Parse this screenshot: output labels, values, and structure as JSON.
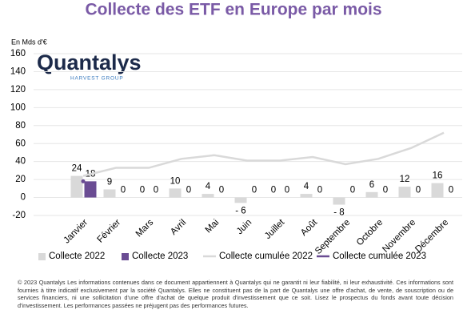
{
  "chart_data": {
    "type": "bar",
    "title": "Collecte des ETF en Europe par mois",
    "y_label": "En Mds d'€",
    "logo": {
      "name": "Quantalys",
      "tagline": "HARVEST GROUP"
    },
    "categories": [
      "Janvier",
      "Février",
      "Mars",
      "Avril",
      "Mai",
      "Juin",
      "Juillet",
      "Août",
      "Septembre",
      "Octobre",
      "Novembre",
      "Décembre"
    ],
    "series": [
      {
        "name": "Collecte 2022",
        "type": "bar",
        "color": "#d9d9d9",
        "values": [
          24,
          9,
          0,
          10,
          4,
          -6,
          0,
          4,
          -8,
          6,
          12,
          16
        ],
        "value_labels": [
          "24",
          "9",
          "0",
          "10",
          "4",
          "- 6",
          "0",
          "4",
          "- 8",
          "6",
          "12",
          "16"
        ]
      },
      {
        "name": "Collecte 2023",
        "type": "bar",
        "color": "#6a4c93",
        "values": [
          18,
          0,
          0,
          0,
          0,
          0,
          0,
          0,
          0,
          0,
          0,
          0
        ]
      },
      {
        "name": "Collecte cumulée 2022",
        "type": "line",
        "color": "#d9d9d9",
        "values": [
          24,
          33,
          33,
          43,
          47,
          41,
          41,
          45,
          37,
          43,
          55,
          72
        ]
      },
      {
        "name": "Collecte cumulée 2023",
        "type": "line",
        "color": "#6a4c93",
        "values": [
          18,
          null,
          null,
          null,
          null,
          null,
          null,
          null,
          null,
          null,
          null,
          null
        ]
      }
    ],
    "ylim": [
      -20,
      160
    ],
    "yticks": [
      -20,
      0,
      20,
      40,
      60,
      80,
      100,
      120,
      140,
      160
    ],
    "grid": true,
    "legend": "bottom",
    "note": "© 2023 Quantalys Les informations contenues dans ce document appartiennent à Quantalys qui ne garantit ni leur fiabilité, ni leur exhaustivité. Ces informations sont fournies à titre indicatif exclusivement par la société Quantalys. Elles ne constituent pas de la part de Quantalys une offre d'achat, de vente, de souscription ou de services financiers, ni une sollicitation d'une offre d'achat de quelque produit d'investissement que ce soit. Lisez le prospectus du fonds avant toute décision d'investissement. Les performances passées ne préjugent pas des performances futures."
  }
}
